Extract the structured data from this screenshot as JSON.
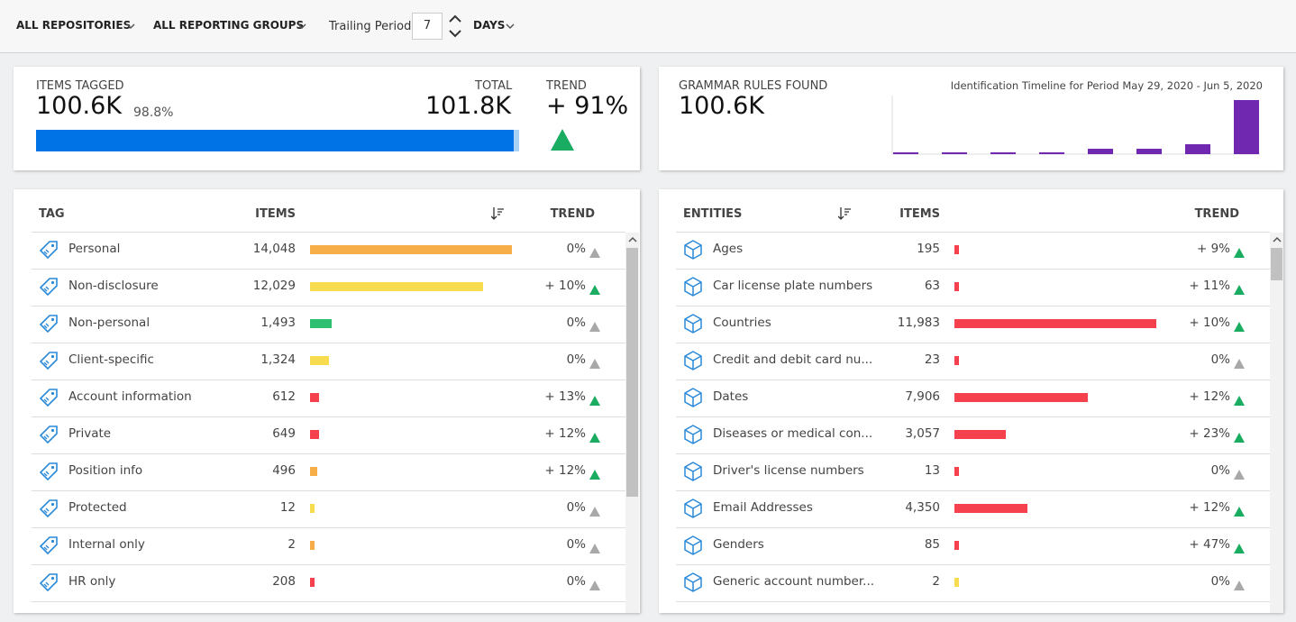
{
  "toolbar": {
    "repositories": "ALL REPOSITORIES",
    "groups": "ALL REPORTING GROUPS",
    "trailing_label": "Trailing Period",
    "trailing_value": "7",
    "unit": "DAYS"
  },
  "items_tagged": {
    "label": "ITEMS TAGGED",
    "value": "100.6K",
    "percent": {
      "value": 98.8,
      "label": "98.8%"
    },
    "total_label": "TOTAL",
    "total": "101.8K",
    "trend_label": "TREND",
    "trend": "+ 91%"
  },
  "grammar": {
    "label": "GRAMMAR RULES FOUND",
    "value": "100.6K",
    "timeline_title": "Identification Timeline for Period May 29, 2020 - Jun 5, 2020",
    "timeline_values": [
      2,
      2,
      2,
      2,
      6,
      6,
      11,
      60
    ],
    "timeline_color": "#7028b0"
  },
  "tags": {
    "headers": [
      "TAG",
      "ITEMS",
      "TREND"
    ],
    "rows": [
      {
        "name": "Personal",
        "items": {
          "value": 14048,
          "label": "14,048"
        },
        "trend": "0%",
        "color": "#f7ad48",
        "up": false
      },
      {
        "name": "Non-disclosure",
        "items": {
          "value": 12029,
          "label": "12,029"
        },
        "trend": "+ 10%",
        "color": "#f6dc4e",
        "up": true
      },
      {
        "name": "Non-personal",
        "items": {
          "value": 1493,
          "label": "1,493"
        },
        "trend": "0%",
        "color": "#2fbf71",
        "up": false
      },
      {
        "name": "Client-specific",
        "items": {
          "value": 1324,
          "label": "1,324"
        },
        "trend": "0%",
        "color": "#f6dc4e",
        "up": false
      },
      {
        "name": "Account information",
        "items": {
          "value": 612,
          "label": "612"
        },
        "trend": "+ 13%",
        "color": "#f4414d",
        "up": true
      },
      {
        "name": "Private",
        "items": {
          "value": 649,
          "label": "649"
        },
        "trend": "+ 12%",
        "color": "#f4414d",
        "up": true
      },
      {
        "name": "Position info",
        "items": {
          "value": 496,
          "label": "496"
        },
        "trend": "+ 12%",
        "color": "#f7ad48",
        "up": true
      },
      {
        "name": "Protected",
        "items": {
          "value": 12,
          "label": "12"
        },
        "trend": "0%",
        "color": "#f6dc4e",
        "up": false
      },
      {
        "name": "Internal only",
        "items": {
          "value": 2,
          "label": "2"
        },
        "trend": "0%",
        "color": "#f7ad48",
        "up": false
      },
      {
        "name": "HR only",
        "items": {
          "value": 208,
          "label": "208"
        },
        "trend": "0%",
        "color": "#f4414d",
        "up": false
      }
    ]
  },
  "entities": {
    "headers": [
      "ENTITIES",
      "ITEMS",
      "TREND"
    ],
    "rows": [
      {
        "name": "Ages",
        "items": {
          "value": 195,
          "label": "195"
        },
        "trend": "+ 9%",
        "color": "#f4414d",
        "up": true
      },
      {
        "name": "Car license plate numbers",
        "items": {
          "value": 63,
          "label": "63"
        },
        "trend": "+ 11%",
        "color": "#f4414d",
        "up": true
      },
      {
        "name": "Countries",
        "items": {
          "value": 11983,
          "label": "11,983"
        },
        "trend": "+ 10%",
        "color": "#f4414d",
        "up": true
      },
      {
        "name": "Credit and debit card nu...",
        "items": {
          "value": 23,
          "label": "23"
        },
        "trend": "0%",
        "color": "#f4414d",
        "up": false
      },
      {
        "name": "Dates",
        "items": {
          "value": 7906,
          "label": "7,906"
        },
        "trend": "+ 12%",
        "color": "#f4414d",
        "up": true
      },
      {
        "name": "Diseases or medical con...",
        "items": {
          "value": 3057,
          "label": "3,057"
        },
        "trend": "+ 23%",
        "color": "#f4414d",
        "up": true
      },
      {
        "name": "Driver's license numbers",
        "items": {
          "value": 13,
          "label": "13"
        },
        "trend": "0%",
        "color": "#f4414d",
        "up": false
      },
      {
        "name": "Email Addresses",
        "items": {
          "value": 4350,
          "label": "4,350"
        },
        "trend": "+ 12%",
        "color": "#f4414d",
        "up": true
      },
      {
        "name": "Genders",
        "items": {
          "value": 85,
          "label": "85"
        },
        "trend": "+ 47%",
        "color": "#f4414d",
        "up": true
      },
      {
        "name": "Generic account number...",
        "items": {
          "value": 2,
          "label": "2"
        },
        "trend": "0%",
        "color": "#f6dc4e",
        "up": false
      }
    ]
  }
}
